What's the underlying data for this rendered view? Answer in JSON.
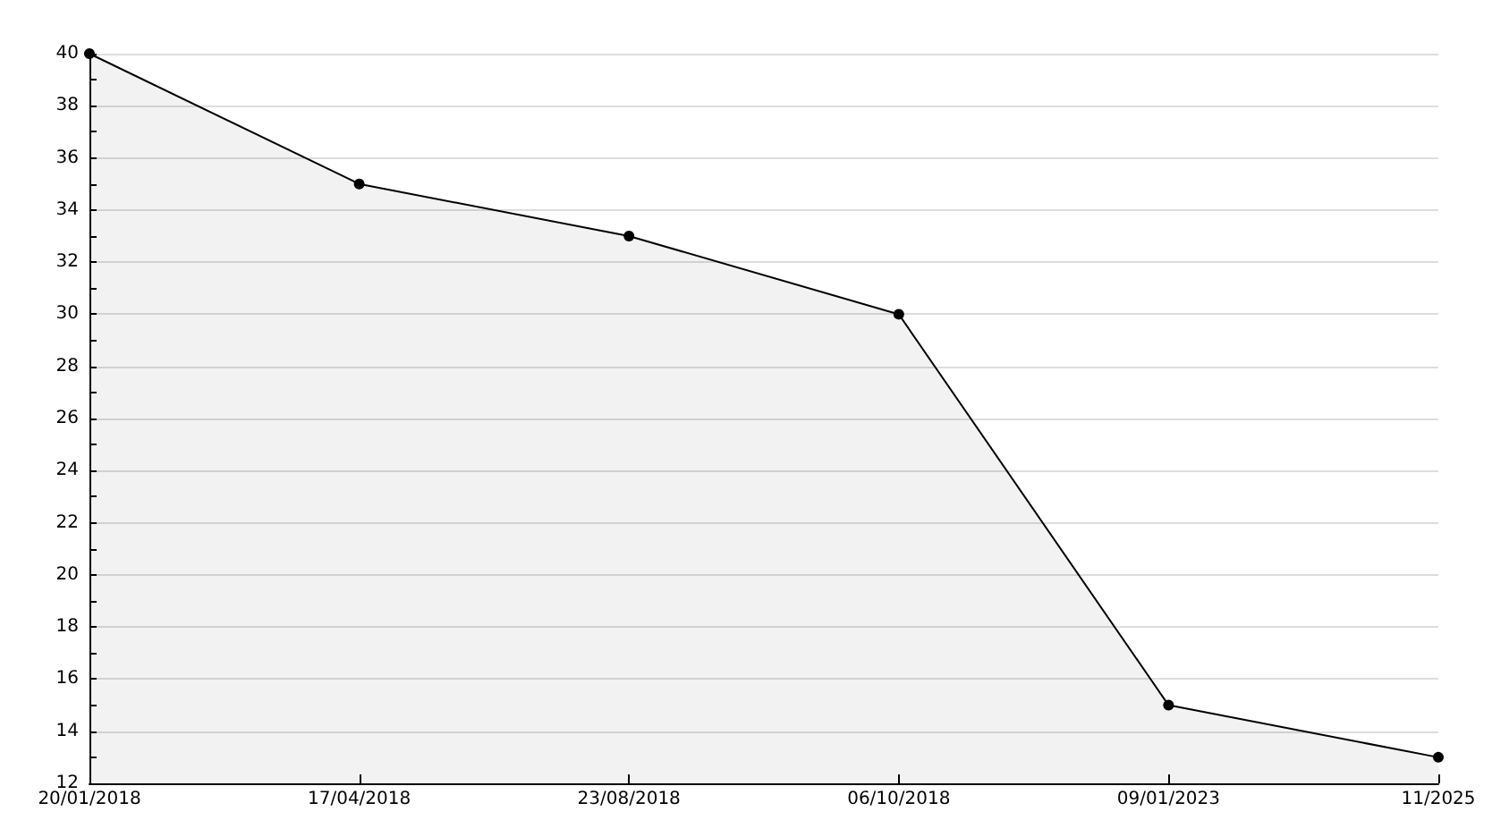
{
  "chart_data": {
    "type": "area",
    "categories": [
      "20/01/2018",
      "17/04/2018",
      "23/08/2018",
      "06/10/2018",
      "09/01/2023",
      "11/2025"
    ],
    "series": [
      {
        "color": "#000000",
        "values": [
          40,
          35,
          33,
          30,
          15,
          13
        ]
      }
    ],
    "ylim": [
      12,
      40
    ],
    "yticks": [
      12,
      {
        "value": 13,
        "label": null
      },
      14,
      {
        "value": 15,
        "label": null
      },
      16,
      {
        "value": 17,
        "label": null
      },
      18,
      {
        "value": 19,
        "label": null
      },
      20,
      {
        "value": 21,
        "label": null
      },
      22,
      {
        "value": 23,
        "label": null
      },
      24,
      {
        "value": 25,
        "label": null
      },
      26,
      {
        "value": 27,
        "label": null
      },
      28,
      {
        "value": 29,
        "label": null
      },
      30,
      {
        "value": 31,
        "label": null
      },
      32,
      {
        "value": 33,
        "label": null
      },
      34,
      {
        "value": 35,
        "label": null
      },
      36,
      {
        "value": 37,
        "label": null
      },
      38,
      {
        "value": 39,
        "label": null
      },
      40
    ],
    "grid": "y",
    "marker": "circle",
    "line_style": "solid"
  }
}
